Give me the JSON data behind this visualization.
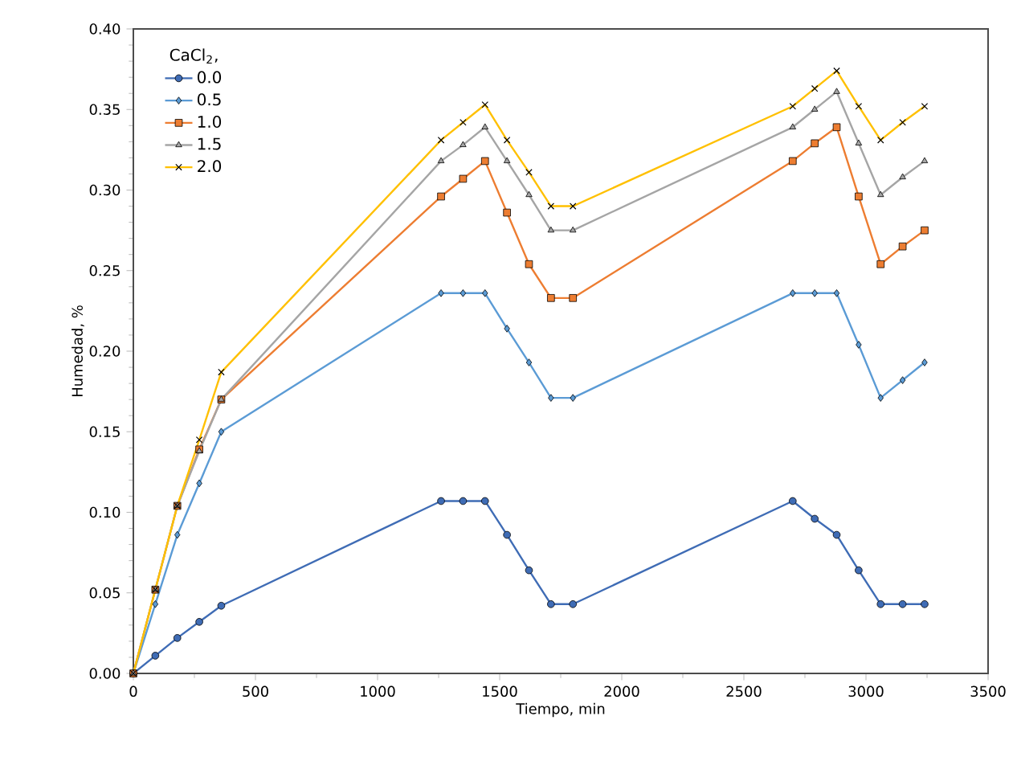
{
  "chart_data": {
    "type": "line",
    "xlabel": "Tiempo, min",
    "ylabel": "Humedad, %",
    "legend_title": "CaCl$_{2}$,",
    "legend": "top left",
    "grid": false,
    "line_style": "solid",
    "x": [
      0,
      90,
      180,
      270,
      360,
      1260,
      1350,
      1440,
      1530,
      1620,
      1710,
      1800,
      2700,
      2790,
      2880,
      2970,
      3060,
      3150,
      3240
    ],
    "xlim": [
      0,
      3500
    ],
    "xticks": [
      0,
      500,
      1000,
      1500,
      2000,
      2500,
      3000,
      3500
    ],
    "ylim": [
      0,
      0.4
    ],
    "yticks": [
      {
        "value": 0,
        "label": "0.00"
      },
      {
        "value": 0.05,
        "label": "0.05"
      },
      {
        "value": 0.1,
        "label": "0.10"
      },
      {
        "value": 0.15,
        "label": "0.15"
      },
      {
        "value": 0.2,
        "label": "0.20"
      },
      {
        "value": 0.25,
        "label": "0.25"
      },
      {
        "value": 0.3,
        "label": "0.30"
      },
      {
        "value": 0.35,
        "label": "0.35"
      },
      {
        "value": 0.4,
        "label": "0.40"
      }
    ],
    "series": [
      {
        "name": "0.0",
        "color": "#3f6cb5",
        "marker": "circle",
        "values": [
          0,
          0.011,
          0.022,
          0.032,
          0.042,
          0.107,
          0.107,
          0.107,
          0.086,
          0.064,
          0.043,
          0.043,
          0.107,
          0.096,
          0.086,
          0.064,
          0.043,
          0.043,
          0.043
        ]
      },
      {
        "name": "0.5",
        "color": "#5b9bd5",
        "marker": "diamond",
        "values": [
          0,
          0.043,
          0.086,
          0.118,
          0.15,
          0.236,
          0.236,
          0.236,
          0.214,
          0.193,
          0.171,
          0.171,
          0.236,
          0.236,
          0.236,
          0.204,
          0.171,
          0.182,
          0.193
        ]
      },
      {
        "name": "1.0",
        "color": "#ed7d31",
        "marker": "square",
        "values": [
          0,
          0.052,
          0.104,
          0.139,
          0.17,
          0.296,
          0.307,
          0.318,
          0.286,
          0.254,
          0.233,
          0.233,
          0.318,
          0.329,
          0.339,
          0.296,
          0.254,
          0.265,
          0.275
        ]
      },
      {
        "name": "1.5",
        "color": "#a5a5a5",
        "marker": "triangle",
        "values": [
          0,
          0.052,
          0.104,
          0.138,
          0.17,
          0.318,
          0.328,
          0.339,
          0.318,
          0.297,
          0.275,
          0.275,
          0.339,
          0.35,
          0.361,
          0.329,
          0.297,
          0.308,
          0.318
        ]
      },
      {
        "name": "2.0",
        "color": "#ffc000",
        "marker": "cross",
        "values": [
          0,
          0.052,
          0.104,
          0.145,
          0.187,
          0.331,
          0.342,
          0.353,
          0.331,
          0.311,
          0.29,
          0.29,
          0.352,
          0.363,
          0.374,
          0.352,
          0.331,
          0.342,
          0.352
        ]
      }
    ]
  }
}
